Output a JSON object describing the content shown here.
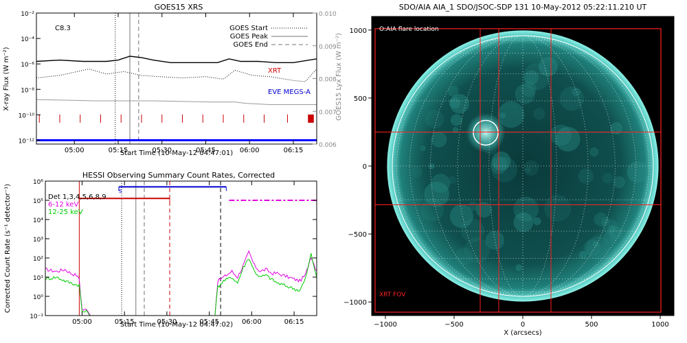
{
  "chart_data": [
    {
      "type": "line",
      "title": "GOES15 XRS",
      "xlabel": "Start Time (10-May-12 04:47:01)",
      "ylabel_left": "X-ray Flux (W m⁻²)",
      "ylabel_right": "GOES15 Lyx Flux (W m⁻²)",
      "xticks": [
        "05:00",
        "05:15",
        "05:30",
        "05:45",
        "06:00",
        "06:15"
      ],
      "xticks_min": [
        13,
        28,
        43,
        58,
        73,
        88
      ],
      "xlim_min": [
        0,
        96
      ],
      "yticks_left": [
        "10⁻²",
        "10⁻⁴",
        "10⁻⁶",
        "10⁻⁸",
        "10⁻¹⁰",
        "10⁻¹²"
      ],
      "ylim_left_log10": [
        -12.3,
        -2
      ],
      "yticks_right": [
        "0.010",
        "0.009",
        "0.008",
        "0.007",
        "0.006"
      ],
      "ylim_right": [
        0.006,
        0.01
      ],
      "yscale_left": "log",
      "annotation": "C8.3",
      "legend_position": "top-right",
      "legend": [
        {
          "name": "GOES Start",
          "style": "dotted",
          "color": "#000000"
        },
        {
          "name": "GOES Peak",
          "style": "solid",
          "color": "#a0a0a0"
        },
        {
          "name": "GOES End",
          "style": "dashed",
          "color": "#a0a0a0"
        }
      ],
      "series": [
        {
          "name": "",
          "color": "#000000",
          "style": "solid",
          "x": [
            0,
            8,
            16,
            24,
            28,
            32,
            36,
            40,
            46,
            54,
            62,
            66,
            70,
            76,
            82,
            88,
            96
          ],
          "y": [
            -5.8,
            -5.7,
            -5.8,
            -5.8,
            -5.7,
            -5.4,
            -5.5,
            -5.7,
            -5.9,
            -5.9,
            -5.9,
            -5.6,
            -5.8,
            -5.8,
            -5.9,
            -5.9,
            -5.6
          ]
        },
        {
          "name": "",
          "color": "#000000",
          "style": "dotted",
          "x": [
            0,
            8,
            14,
            18,
            24,
            30,
            36,
            42,
            50,
            58,
            64,
            68,
            74,
            80,
            88,
            92,
            96
          ],
          "y": [
            -7.1,
            -6.9,
            -6.6,
            -6.4,
            -6.8,
            -6.6,
            -6.9,
            -7.0,
            -7.1,
            -7.0,
            -7.2,
            -6.5,
            -6.9,
            -7.0,
            -7.3,
            -7.4,
            -6.4
          ]
        },
        {
          "name": "",
          "color": "#999999",
          "style": "solid",
          "x": [
            0,
            20,
            40,
            60,
            68,
            72,
            80,
            96
          ],
          "y": [
            -8.8,
            -8.9,
            -8.9,
            -9.0,
            -9.0,
            -9.1,
            -9.2,
            -9.2
          ]
        }
      ],
      "labels": [
        {
          "text": "XRT",
          "color": "#cc0000"
        },
        {
          "text": "EVE MEGS-A",
          "color": "#0000cc"
        }
      ],
      "xrt_marks_min": [
        1,
        8,
        15,
        22,
        29,
        36,
        43,
        50,
        57,
        64,
        71,
        78,
        86
      ],
      "xrt_block_min": [
        93,
        95
      ],
      "eve_line_color": "#0000ff",
      "event_times_min": {
        "start": 27,
        "peak": 32,
        "end": 35
      }
    },
    {
      "type": "line",
      "title": "HESSI Observing Summary Count Rates, Corrected",
      "xlabel": "Start Time (10-May-12 04:47:02)",
      "ylabel": "Corrected Count Rate (s⁻¹ detector⁻¹)",
      "xticks": [
        "05:00",
        "05:15",
        "05:30",
        "05:45",
        "06:00",
        "06:15"
      ],
      "xticks_min": [
        13,
        28,
        43,
        58,
        73,
        88
      ],
      "xlim_min": [
        0,
        96
      ],
      "yticks": [
        "10⁶",
        "10⁵",
        "10⁴",
        "10³",
        "10²",
        "10¹",
        "10⁰",
        "10⁻¹"
      ],
      "ylim_log10": [
        -1,
        6
      ],
      "yscale": "log",
      "legend": [
        {
          "name": "Det 1,3,4,5,6,8,9",
          "color": "#000000"
        },
        {
          "name": "6-12 keV",
          "color": "#e000e0"
        },
        {
          "name": "12-25 keV",
          "color": "#00cc00"
        }
      ],
      "series": [
        {
          "name": "6-12 keV",
          "color": "#e000e0",
          "x": [
            0,
            4,
            7,
            9,
            11,
            12,
            13,
            15,
            16,
            60,
            61,
            63,
            66,
            68,
            70,
            72,
            74,
            76,
            78,
            80,
            82,
            84,
            86,
            88,
            90,
            92,
            94,
            96
          ],
          "y": [
            1.4,
            1.3,
            1.4,
            1.2,
            1.1,
            0.9,
            -0.7,
            -0.7,
            -1,
            -1,
            0.8,
            1.0,
            1.3,
            1.0,
            1.6,
            2.3,
            1.6,
            1.3,
            1.4,
            1.2,
            1.2,
            1.1,
            1.0,
            0.9,
            0.8,
            1.1,
            2.1,
            1.3
          ]
        },
        {
          "name": "12-25 keV",
          "color": "#00cc00",
          "x": [
            0,
            4,
            7,
            9,
            11,
            12,
            13,
            15,
            16,
            60,
            61,
            63,
            66,
            68,
            70,
            72,
            74,
            76,
            78,
            80,
            82,
            84,
            86,
            88,
            90,
            92,
            94,
            96
          ],
          "y": [
            0.9,
            1.0,
            0.8,
            0.7,
            0.6,
            0.6,
            -0.8,
            -0.8,
            -1,
            -1,
            0.5,
            0.8,
            1.0,
            0.7,
            1.5,
            2.0,
            1.3,
            1.0,
            1.1,
            0.9,
            0.7,
            0.6,
            0.5,
            0.4,
            0.3,
            0.9,
            2.2,
            1.0
          ]
        }
      ],
      "flags": [
        {
          "color": "#cc0000",
          "x": [
            12,
            44
          ],
          "y_log10": 5.1
        },
        {
          "color": "#0000cc",
          "x": [
            26,
            64
          ],
          "y_log10": 5.7
        }
      ],
      "flag_label": "s",
      "magenta_dash_y_log10": 5.0,
      "magenta_dash_from_min": 65,
      "event_times_min": {
        "start": 27,
        "peak": 32,
        "end": 35
      },
      "red_dashed_min": [
        12,
        44
      ],
      "black_dashed_min": 62
    },
    {
      "type": "heatmap",
      "title": "SDO/AIA AIA_1 SDO/JSOC-SDP 131 10-May-2012 05:22:11.210 UT",
      "xlabel": "X (arcsecs)",
      "ylabel": "",
      "xticks": [
        -1000,
        -500,
        0,
        500,
        1000
      ],
      "yticks": [
        1000,
        500,
        0,
        -500,
        -1000
      ],
      "xlim": [
        -1100,
        1100
      ],
      "ylim": [
        -1100,
        1100
      ],
      "legend_position": "top-left",
      "annotations": [
        {
          "text": "O:AIA flare location",
          "color": "#ffffff"
        },
        {
          "text": "XRT FOV",
          "color": "#ff2020"
        }
      ],
      "flare_location": [
        -270,
        245
      ],
      "flare_radius": 90,
      "solar_radius": 950,
      "xrt_fov_box": [
        -1075,
        -1075,
        1005,
        1010
      ],
      "xrt_grid_x": [
        -310,
        -175,
        205
      ],
      "xrt_grid_y": [
        -285,
        250
      ]
    }
  ]
}
